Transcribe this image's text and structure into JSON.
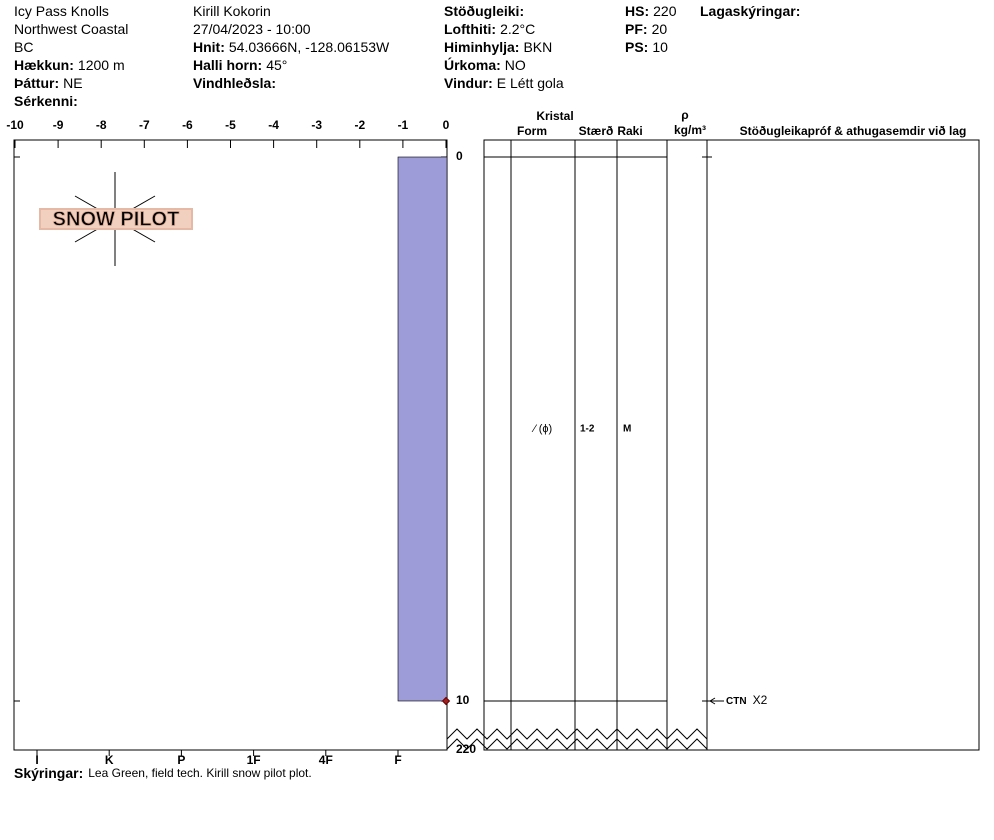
{
  "header": {
    "columns": [
      [
        {
          "value": "Icy Pass Knolls"
        },
        {
          "value": "Northwest Coastal"
        },
        {
          "value": "BC"
        },
        {
          "label": "Hækkun:",
          "value": "1200 m"
        },
        {
          "label": "Þáttur:",
          "value": "NE"
        },
        {
          "label": "Sérkenni:"
        }
      ],
      [
        {
          "value": "Kirill Kokorin"
        },
        {
          "value": "27/04/2023 - 10:00"
        },
        {
          "label": "Hnit:",
          "value": "54.03666N, -128.06153W"
        },
        {
          "label": "Halli horn:",
          "value": "45°"
        },
        {
          "label": "Vindhleðsla:"
        }
      ],
      [
        {
          "label": "Stöðugleiki:"
        },
        {
          "label": "Lofthiti:",
          "value": "2.2°C"
        },
        {
          "label": "Himinhylja:",
          "value": "BKN"
        },
        {
          "label": "Úrkoma:",
          "value": "NO"
        },
        {
          "label": "Vindur:",
          "value": "E Létt gola"
        }
      ],
      [
        {
          "label": "HS:",
          "value": "220"
        },
        {
          "label": "PF:",
          "value": "20"
        },
        {
          "label": "PS:",
          "value": "10"
        }
      ],
      [
        {
          "label": "Lagaskýringar:"
        }
      ]
    ]
  },
  "logo": "SNOW PILOT",
  "profile": {
    "temperature_axis": {
      "lim": [
        -10,
        0
      ],
      "ticks": [
        -10,
        -9,
        -8,
        -7,
        -6,
        -5,
        -4,
        -3,
        -2,
        -1,
        0
      ]
    },
    "depth_axis": {
      "lim": [
        0,
        10
      ],
      "ticks": [
        0,
        10
      ],
      "total": 220
    },
    "hardness_scale": [
      "I",
      "K",
      "P",
      "1F",
      "4F",
      "F"
    ],
    "layers": [
      {
        "top": 0,
        "bottom": 10,
        "hardness": "F",
        "form": "⁄ (ɸ)",
        "size": "1-2",
        "wetness": "M"
      }
    ],
    "temperatures": [
      {
        "depth": 10,
        "temp": 0
      }
    ],
    "tests": [
      {
        "depth": 10,
        "result": "CTN",
        "note": "X2"
      }
    ]
  },
  "table": {
    "crystal": "Kristal",
    "form": "Form",
    "size": "Stærð",
    "wetness": "Raki",
    "rho": "ρ",
    "density_unit": "kg/m³",
    "comments": "Stöðugleikapróf & athugasemdir við lag"
  },
  "footer": {
    "label": "Skýringar:",
    "value": "Lea Green, field tech. Kirill snow pilot plot."
  }
}
